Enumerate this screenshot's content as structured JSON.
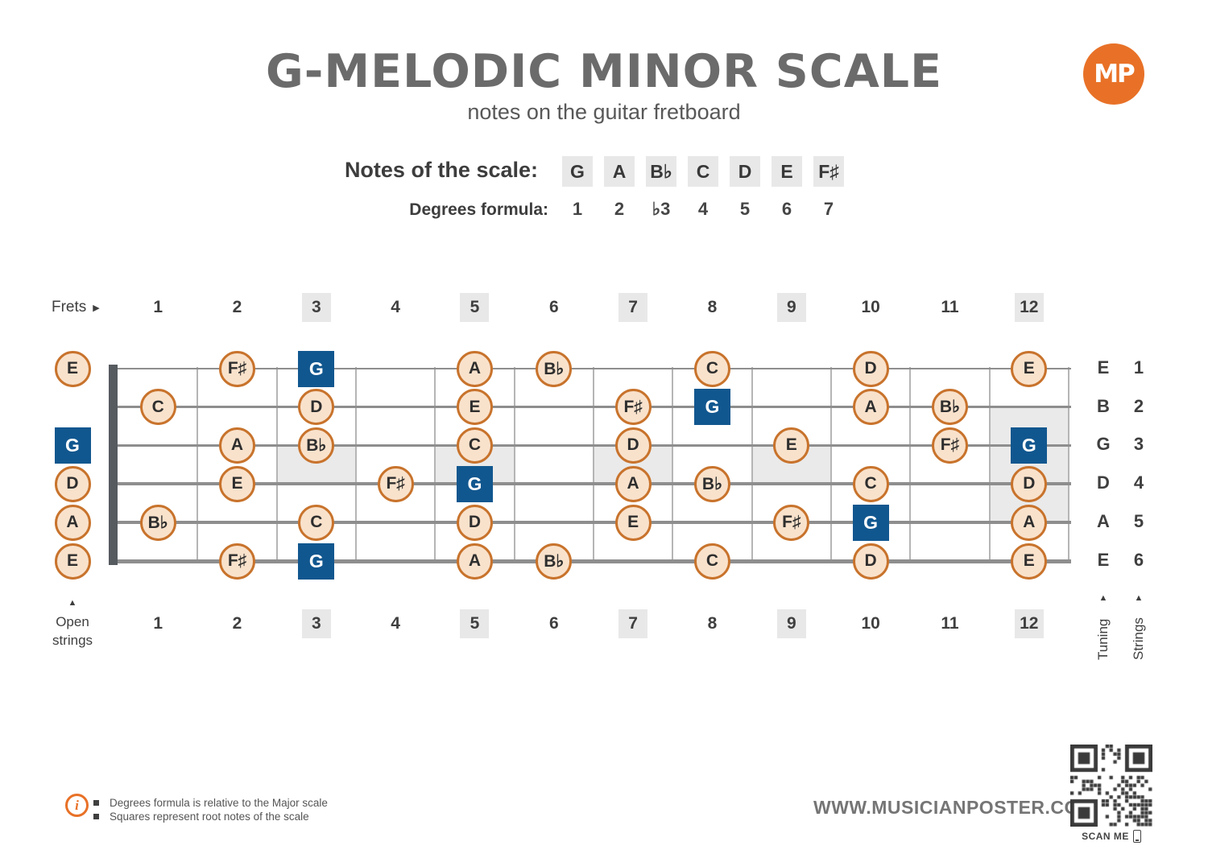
{
  "title": "G-MELODIC MINOR SCALE",
  "subtitle": "notes on the guitar fretboard",
  "logo": {
    "text": "MP"
  },
  "scale": {
    "notes_label": "Notes of the scale:",
    "notes": [
      "G",
      "A",
      "B♭",
      "C",
      "D",
      "E",
      "F♯"
    ],
    "degrees_label": "Degrees formula:",
    "degrees": [
      "1",
      "2",
      "♭3",
      "4",
      "5",
      "6",
      "7"
    ]
  },
  "fretboard": {
    "frets_label": "Frets",
    "fret_numbers": [
      "1",
      "2",
      "3",
      "4",
      "5",
      "6",
      "7",
      "8",
      "9",
      "10",
      "11",
      "12"
    ],
    "marked_frets": [
      3,
      5,
      7,
      9,
      12
    ],
    "open_strings_label_line1": "Open",
    "open_strings_label_line2": "strings",
    "tuning_label": "Tuning",
    "strings_label": "Strings",
    "strings": [
      {
        "number": "1",
        "tuning": "E",
        "open": {
          "note": "E",
          "root": false
        },
        "notes": [
          {
            "fret": 2,
            "note": "F♯",
            "root": false
          },
          {
            "fret": 3,
            "note": "G",
            "root": true
          },
          {
            "fret": 5,
            "note": "A",
            "root": false
          },
          {
            "fret": 6,
            "note": "B♭",
            "root": false
          },
          {
            "fret": 8,
            "note": "C",
            "root": false
          },
          {
            "fret": 10,
            "note": "D",
            "root": false
          },
          {
            "fret": 12,
            "note": "E",
            "root": false
          }
        ]
      },
      {
        "number": "2",
        "tuning": "B",
        "open": null,
        "notes": [
          {
            "fret": 1,
            "note": "C",
            "root": false
          },
          {
            "fret": 3,
            "note": "D",
            "root": false
          },
          {
            "fret": 5,
            "note": "E",
            "root": false
          },
          {
            "fret": 7,
            "note": "F♯",
            "root": false
          },
          {
            "fret": 8,
            "note": "G",
            "root": true
          },
          {
            "fret": 10,
            "note": "A",
            "root": false
          },
          {
            "fret": 11,
            "note": "B♭",
            "root": false
          }
        ]
      },
      {
        "number": "3",
        "tuning": "G",
        "open": {
          "note": "G",
          "root": true
        },
        "notes": [
          {
            "fret": 2,
            "note": "A",
            "root": false
          },
          {
            "fret": 3,
            "note": "B♭",
            "root": false
          },
          {
            "fret": 5,
            "note": "C",
            "root": false
          },
          {
            "fret": 7,
            "note": "D",
            "root": false
          },
          {
            "fret": 9,
            "note": "E",
            "root": false
          },
          {
            "fret": 11,
            "note": "F♯",
            "root": false
          },
          {
            "fret": 12,
            "note": "G",
            "root": true
          }
        ]
      },
      {
        "number": "4",
        "tuning": "D",
        "open": {
          "note": "D",
          "root": false
        },
        "notes": [
          {
            "fret": 2,
            "note": "E",
            "root": false
          },
          {
            "fret": 4,
            "note": "F♯",
            "root": false
          },
          {
            "fret": 5,
            "note": "G",
            "root": true
          },
          {
            "fret": 7,
            "note": "A",
            "root": false
          },
          {
            "fret": 8,
            "note": "B♭",
            "root": false
          },
          {
            "fret": 10,
            "note": "C",
            "root": false
          },
          {
            "fret": 12,
            "note": "D",
            "root": false
          }
        ]
      },
      {
        "number": "5",
        "tuning": "A",
        "open": {
          "note": "A",
          "root": false
        },
        "notes": [
          {
            "fret": 1,
            "note": "B♭",
            "root": false
          },
          {
            "fret": 3,
            "note": "C",
            "root": false
          },
          {
            "fret": 5,
            "note": "D",
            "root": false
          },
          {
            "fret": 7,
            "note": "E",
            "root": false
          },
          {
            "fret": 9,
            "note": "F♯",
            "root": false
          },
          {
            "fret": 10,
            "note": "G",
            "root": true
          },
          {
            "fret": 12,
            "note": "A",
            "root": false
          }
        ]
      },
      {
        "number": "6",
        "tuning": "E",
        "open": {
          "note": "E",
          "root": false
        },
        "notes": [
          {
            "fret": 2,
            "note": "F♯",
            "root": false
          },
          {
            "fret": 3,
            "note": "G",
            "root": true
          },
          {
            "fret": 5,
            "note": "A",
            "root": false
          },
          {
            "fret": 6,
            "note": "B♭",
            "root": false
          },
          {
            "fret": 8,
            "note": "C",
            "root": false
          },
          {
            "fret": 10,
            "note": "D",
            "root": false
          },
          {
            "fret": 12,
            "note": "E",
            "root": false
          }
        ]
      }
    ]
  },
  "footer": {
    "notes": [
      "Degrees formula is relative to the Major scale",
      "Squares represent root notes of the scale"
    ],
    "website": "WWW.MUSICIANPOSTER.COM",
    "scan_label": "SCAN ME"
  },
  "colors": {
    "accent_orange": "#E87127",
    "root_blue": "#11578F",
    "note_fill": "#F9E2CC",
    "note_border": "#C8732C",
    "badge_bg": "#E8E8E8",
    "marker_gray": "#EAEAEA",
    "string_gray": "#8E8E8E",
    "fretwire_gray": "#B5B5B5",
    "nut_gray": "#565B60",
    "title_gray": "#6B6B6B"
  }
}
